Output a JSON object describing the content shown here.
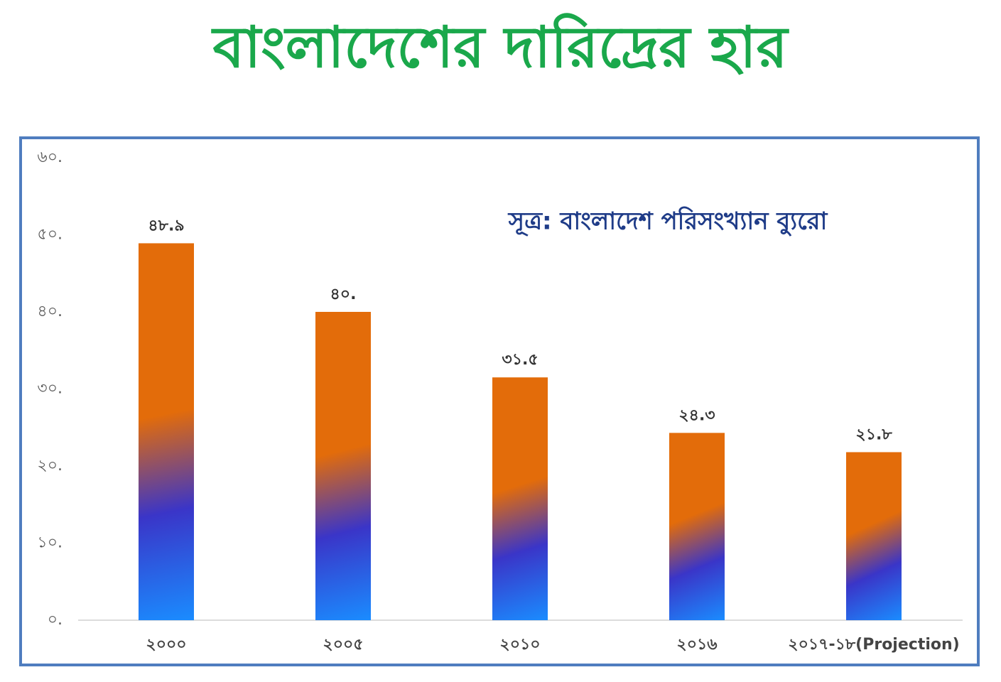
{
  "chart_data": {
    "type": "bar",
    "title": "বাংলাদেশের দারিদ্রের হার",
    "annotation": "সূত্র: বাংলাদেশ পরিসংখ্যান ব্যুরো",
    "categories": [
      "২০০০",
      "২০০৫",
      "২০১০",
      "২০১৬",
      "২০১৭-১৮(Projection)"
    ],
    "values": [
      48.9,
      40,
      31.5,
      24.3,
      21.8
    ],
    "value_labels": [
      "৪৮.৯",
      "৪০.",
      "৩১.৫",
      "২৪.৩",
      "২১.৮"
    ],
    "color": "#e36c0a",
    "ylim": [
      0,
      60
    ],
    "yticks": [
      {
        "value": 0,
        "label": "০."
      },
      {
        "value": 10,
        "label": "১০."
      },
      {
        "value": 20,
        "label": "২০."
      },
      {
        "value": 30,
        "label": "৩০."
      },
      {
        "value": 40,
        "label": "৪০."
      },
      {
        "value": 50,
        "label": "৫০."
      },
      {
        "value": 60,
        "label": "৬০."
      }
    ]
  }
}
